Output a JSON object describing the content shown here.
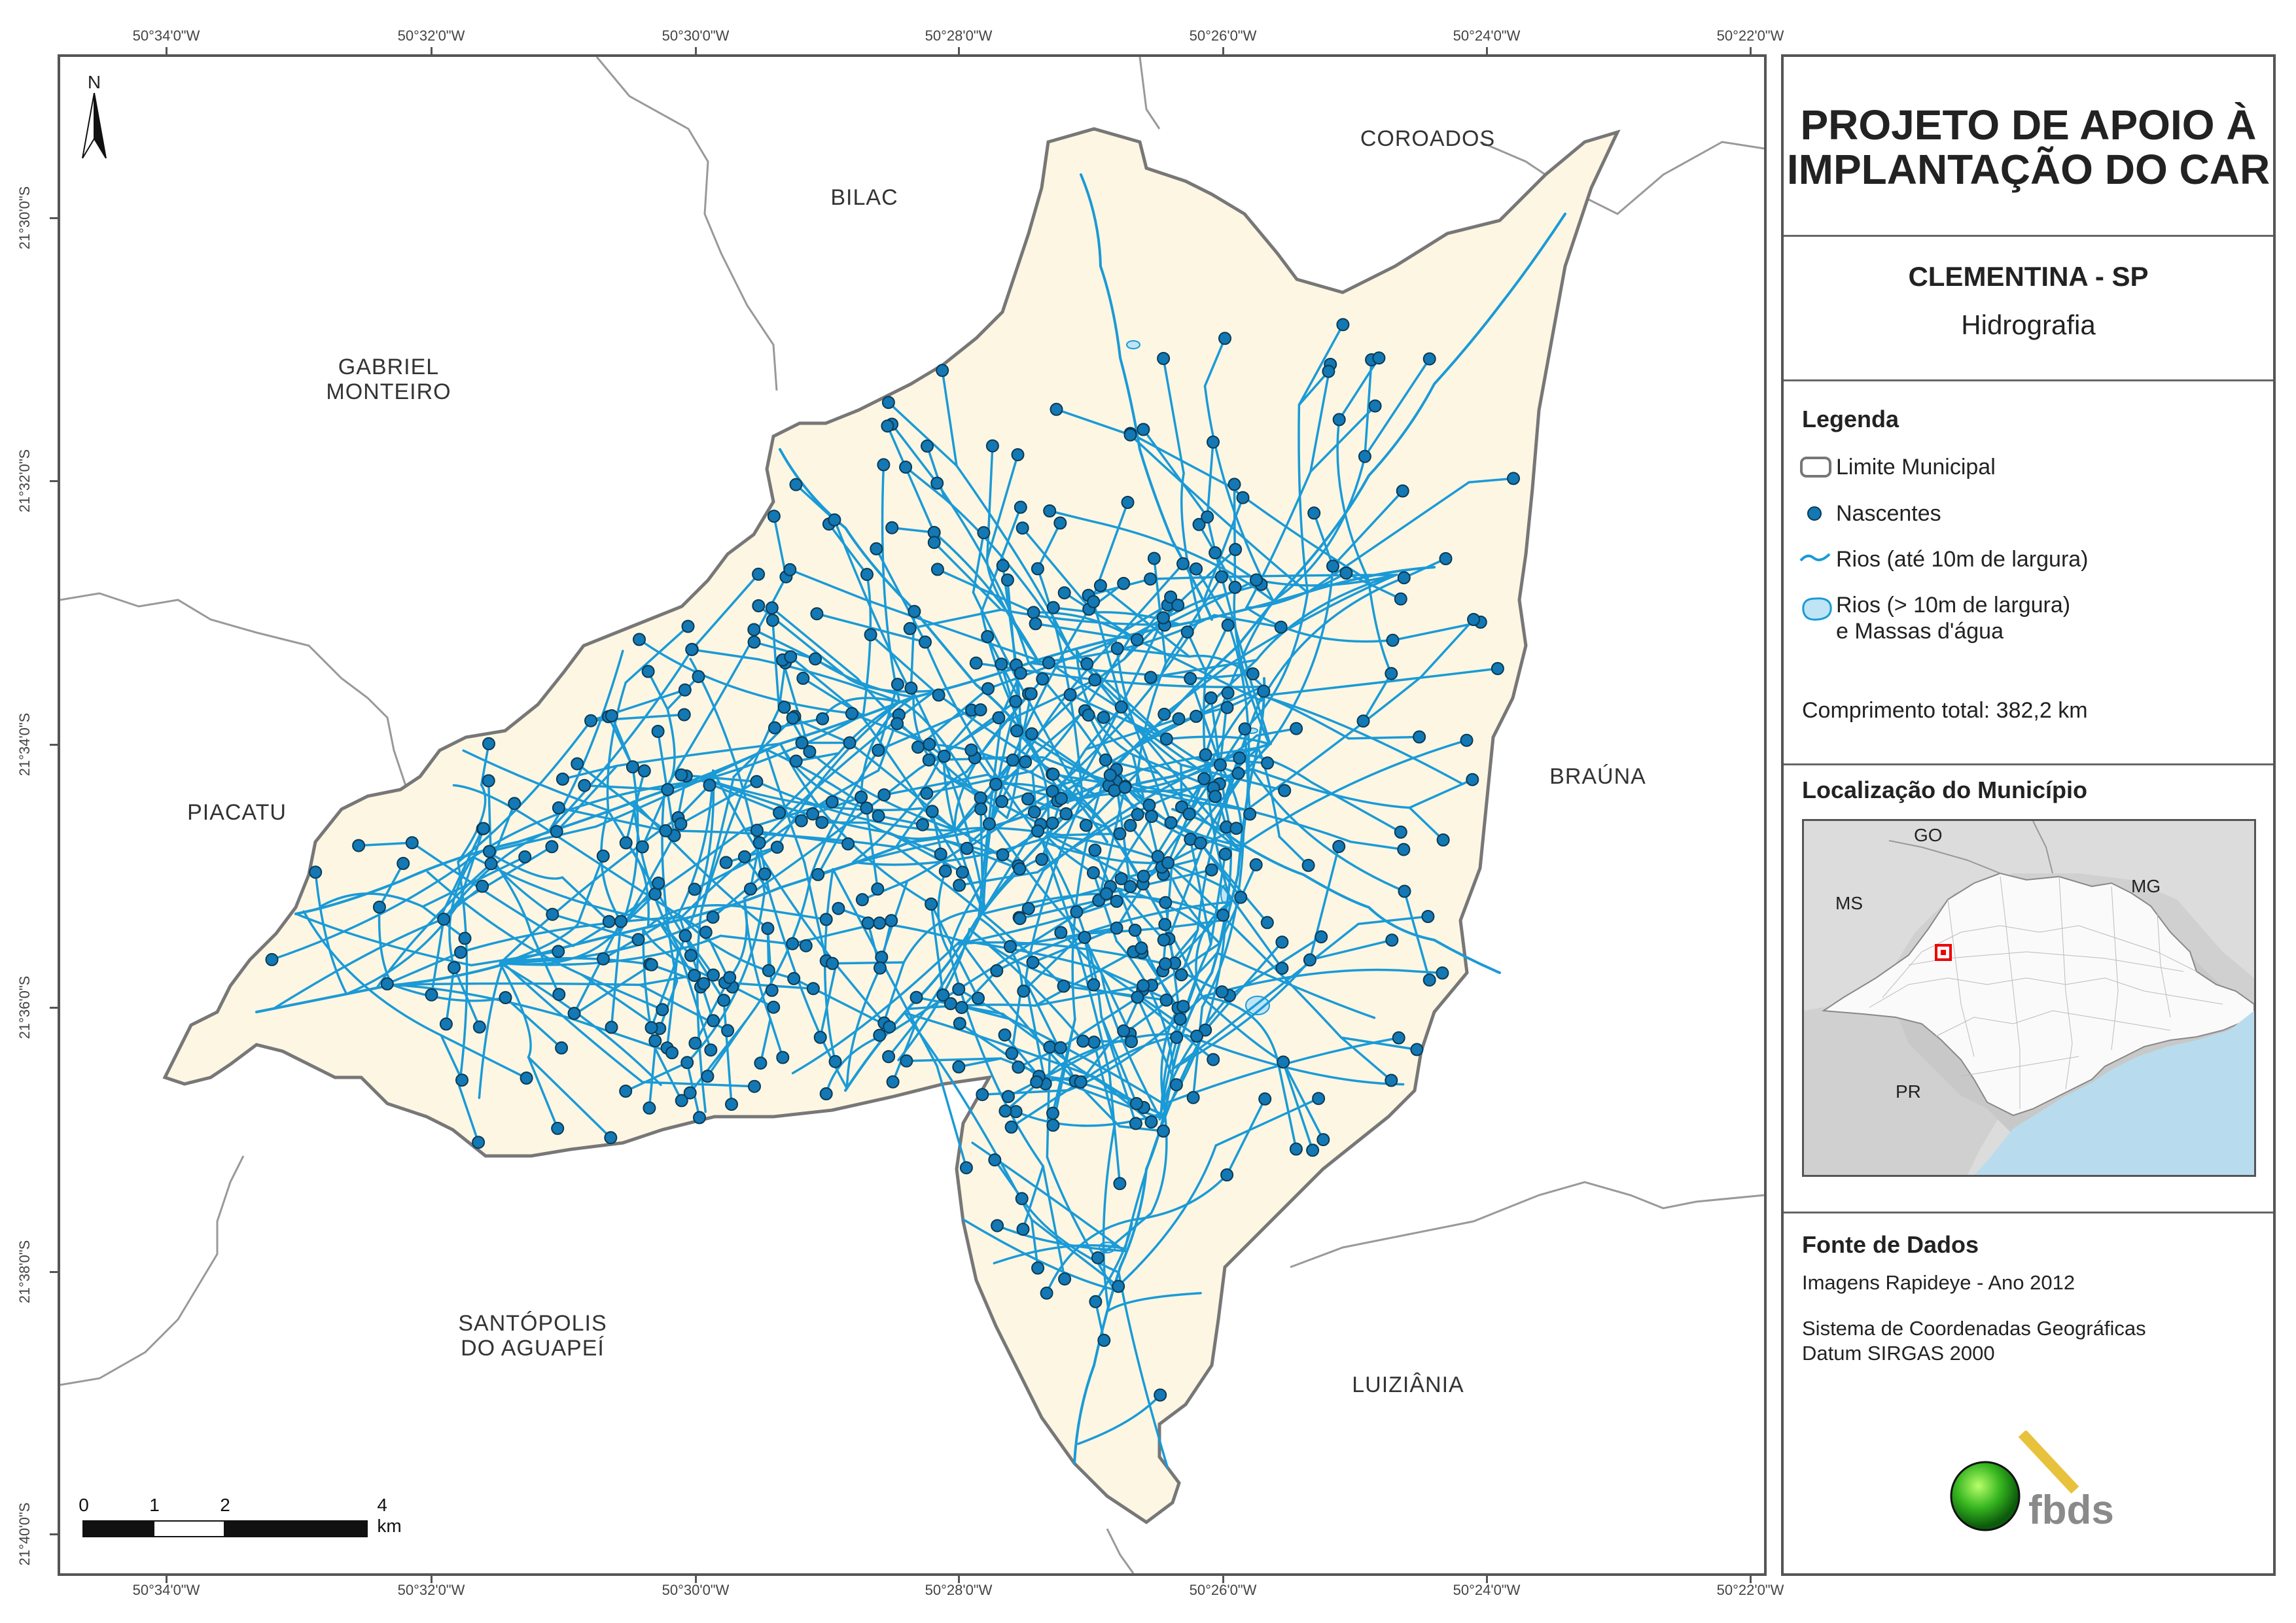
{
  "coordinates": {
    "longitude_labels": [
      "50°34'0\"W",
      "50°32'0\"W",
      "50°30'0\"W",
      "50°28'0\"W",
      "50°26'0\"W",
      "50°24'0\"W",
      "50°22'0\"W"
    ],
    "latitude_labels": [
      "21°30'0\"S",
      "21°32'0\"S",
      "21°34'0\"S",
      "21°36'0\"S",
      "21°38'0\"S",
      "21°40'0\"S"
    ]
  },
  "map": {
    "north_arrow": {
      "label": "N",
      "icon": "north-arrow-icon"
    },
    "neighbors": [
      {
        "id": "coroados",
        "label": "COROADOS"
      },
      {
        "id": "bilac",
        "label": "BILAC"
      },
      {
        "id": "gabriel-monteiro",
        "label": "GABRIEL\nMONTEIRO"
      },
      {
        "id": "piacatu",
        "label": "PIACATU"
      },
      {
        "id": "brauna",
        "label": "BRAÚNA"
      },
      {
        "id": "santopolis",
        "label": "SANTÓPOLIS\nDO AGUAPEÍ"
      },
      {
        "id": "luiziania",
        "label": "LUIZIÂNIA"
      }
    ],
    "scale_bar": {
      "labels": [
        "0",
        "1",
        "2",
        "4 km"
      ]
    },
    "colors": {
      "municipality_fill": "#fdf6e3",
      "boundary": "#777777",
      "rivers": "#1a9ad6",
      "springs": "#1378b3",
      "water_bodies": "#bfe4f6"
    }
  },
  "panel": {
    "project_title": "PROJETO DE APOIO À IMPLANTAÇÃO DO CAR",
    "municipality": "CLEMENTINA - SP",
    "theme": "Hidrografia",
    "legend": {
      "heading": "Legenda",
      "items": [
        {
          "label": "Limite Municipal",
          "icon": "boundary-symbol"
        },
        {
          "label": "Nascentes",
          "icon": "spring-point-symbol"
        },
        {
          "label": "Rios (até 10m de largura)",
          "icon": "river-line-symbol"
        },
        {
          "label": "Rios (> 10m de largura)\ne Massas d'água",
          "icon": "water-body-symbol"
        }
      ]
    },
    "total_length": "Comprimento total:  382,2 km",
    "location": {
      "heading": "Localização do Município",
      "states": [
        "GO",
        "MS",
        "MG",
        "PR"
      ]
    },
    "data_source": {
      "heading": "Fonte de Dados",
      "lines": [
        "Imagens Rapideye - Ano 2012",
        "Sistema de Coordenadas Geográficas",
        "Datum SIRGAS 2000"
      ]
    },
    "logo": {
      "text": "fbds",
      "icon": "fbds-logo-icon"
    }
  }
}
